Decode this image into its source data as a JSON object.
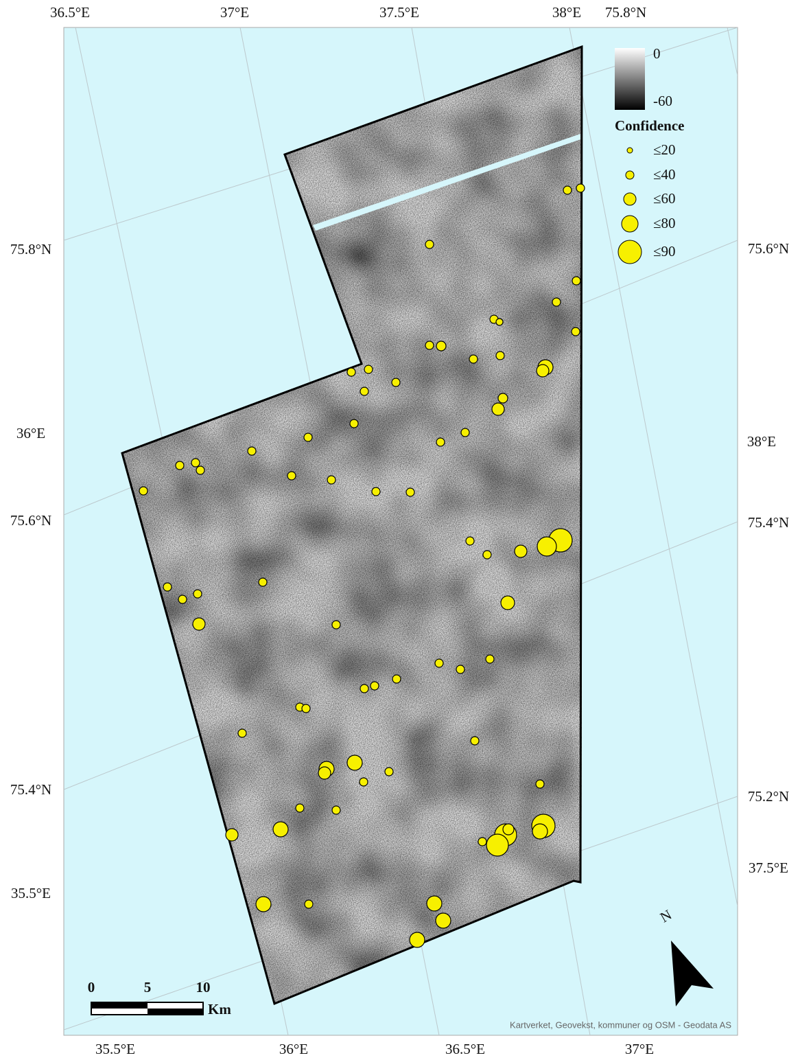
{
  "map": {
    "top_labels": [
      "36.5°E",
      "37°E",
      "37.5°E",
      "38°E",
      "75.8°N"
    ],
    "left_labels": [
      "75.8°N",
      "36°E",
      "75.6°N",
      "75.4°N",
      "35.5°E"
    ],
    "right_labels": [
      "75.6°N",
      "38°E",
      "75.4°N",
      "75.2°N",
      "37.5°E"
    ],
    "bottom_labels": [
      "35.5°E",
      "36°E",
      "36.5°E",
      "37°E"
    ],
    "legend": {
      "ramp_max": "0",
      "ramp_min": "-60",
      "title": "Confidence",
      "classes": [
        "≤20",
        "≤40",
        "≤60",
        "≤80",
        "≤90"
      ]
    },
    "scale_bar": {
      "ticks": [
        "0",
        "5",
        "10"
      ],
      "unit": "Km"
    },
    "north": "N",
    "attribution": "Kartverket, Geovekst, kommuner og OSM - Geodata AS"
  }
}
